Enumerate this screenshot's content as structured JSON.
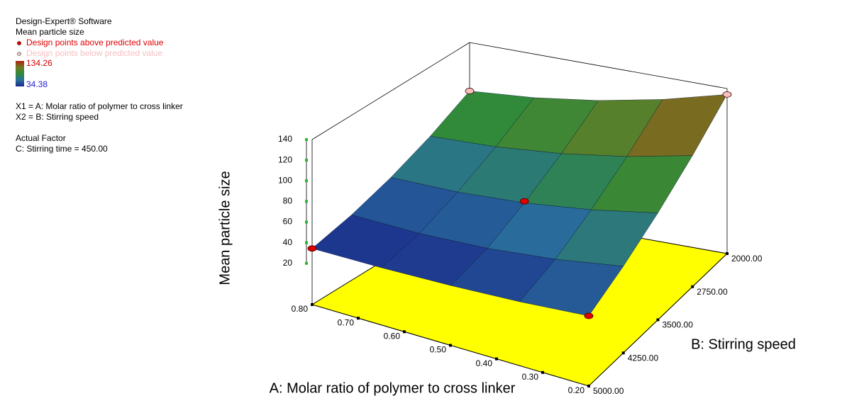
{
  "chart_data": {
    "type": "surface",
    "legend": {
      "software": "Design-Expert® Software",
      "response": "Mean particle size",
      "above_label": "Design points above predicted value",
      "below_label": "Design points below predicted value",
      "color_max": 134.26,
      "color_min": 34.38,
      "x1_label": "X1 = A: Molar ratio of polymer to cross linker",
      "x2_label": "X2 = B: Stirring speed",
      "actual_factor": "Actual Factor",
      "factor_c": "C: Stirring time = 450.00"
    },
    "x_label": "A: Molar ratio of polymer to cross linker",
    "y_label": "B: Stirring speed",
    "z_label": "Mean particle size",
    "xlim": [
      0.2,
      0.8
    ],
    "ylim": [
      2000,
      5000
    ],
    "zlim": [
      -20,
      140
    ],
    "xticks": [
      {
        "value": 0.8,
        "label": "0.80"
      },
      {
        "value": 0.7,
        "label": "0.70"
      },
      {
        "value": 0.6,
        "label": "0.60"
      },
      {
        "value": 0.5,
        "label": "0.50"
      },
      {
        "value": 0.4,
        "label": "0.40"
      },
      {
        "value": 0.3,
        "label": "0.30"
      },
      {
        "value": 0.2,
        "label": "0.20"
      }
    ],
    "yticks": [
      {
        "value": 2000,
        "label": "2000.00"
      },
      {
        "value": 2750,
        "label": "2750.00"
      },
      {
        "value": 3500,
        "label": "3500.00"
      },
      {
        "value": 4250,
        "label": "4250.00"
      },
      {
        "value": 5000,
        "label": "5000.00"
      }
    ],
    "zticks": [
      20,
      40,
      60,
      80,
      100,
      120,
      140
    ],
    "x": [
      0.2,
      0.35,
      0.5,
      0.65,
      0.8
    ],
    "y": [
      2000,
      2750,
      3500,
      4250,
      5000
    ],
    "z": [
      [
        134.26,
        118.3,
        106.1,
        97.7,
        93
      ],
      [
        107.1,
        92.9,
        82.4,
        75.7,
        72.7
      ],
      [
        83.6,
        71.2,
        62.4,
        57.5,
        56.2
      ],
      [
        64.0,
        53.2,
        46.2,
        43.0,
        43.4
      ],
      [
        48,
        42,
        38,
        35.5,
        34.38
      ]
    ],
    "colorscale": [
      "#1a2a8c",
      "#2a6f9c",
      "#2f8a3a",
      "#6f7a24",
      "#b02010"
    ],
    "floor_color": "#ffff00",
    "above_color": "#e00000",
    "below_color": "#f6c0c0",
    "design_points": [
      {
        "a": 0.8,
        "b": 5000,
        "z": 34.38,
        "above": true
      },
      {
        "a": 0.2,
        "b": 5000,
        "z": 48,
        "above": true
      },
      {
        "a": 0.5,
        "b": 3500,
        "z": 64,
        "above": true
      },
      {
        "a": 0.8,
        "b": 2000,
        "z": 93,
        "above": false
      },
      {
        "a": 0.2,
        "b": 2000,
        "z": 134.26,
        "above": false
      }
    ]
  }
}
